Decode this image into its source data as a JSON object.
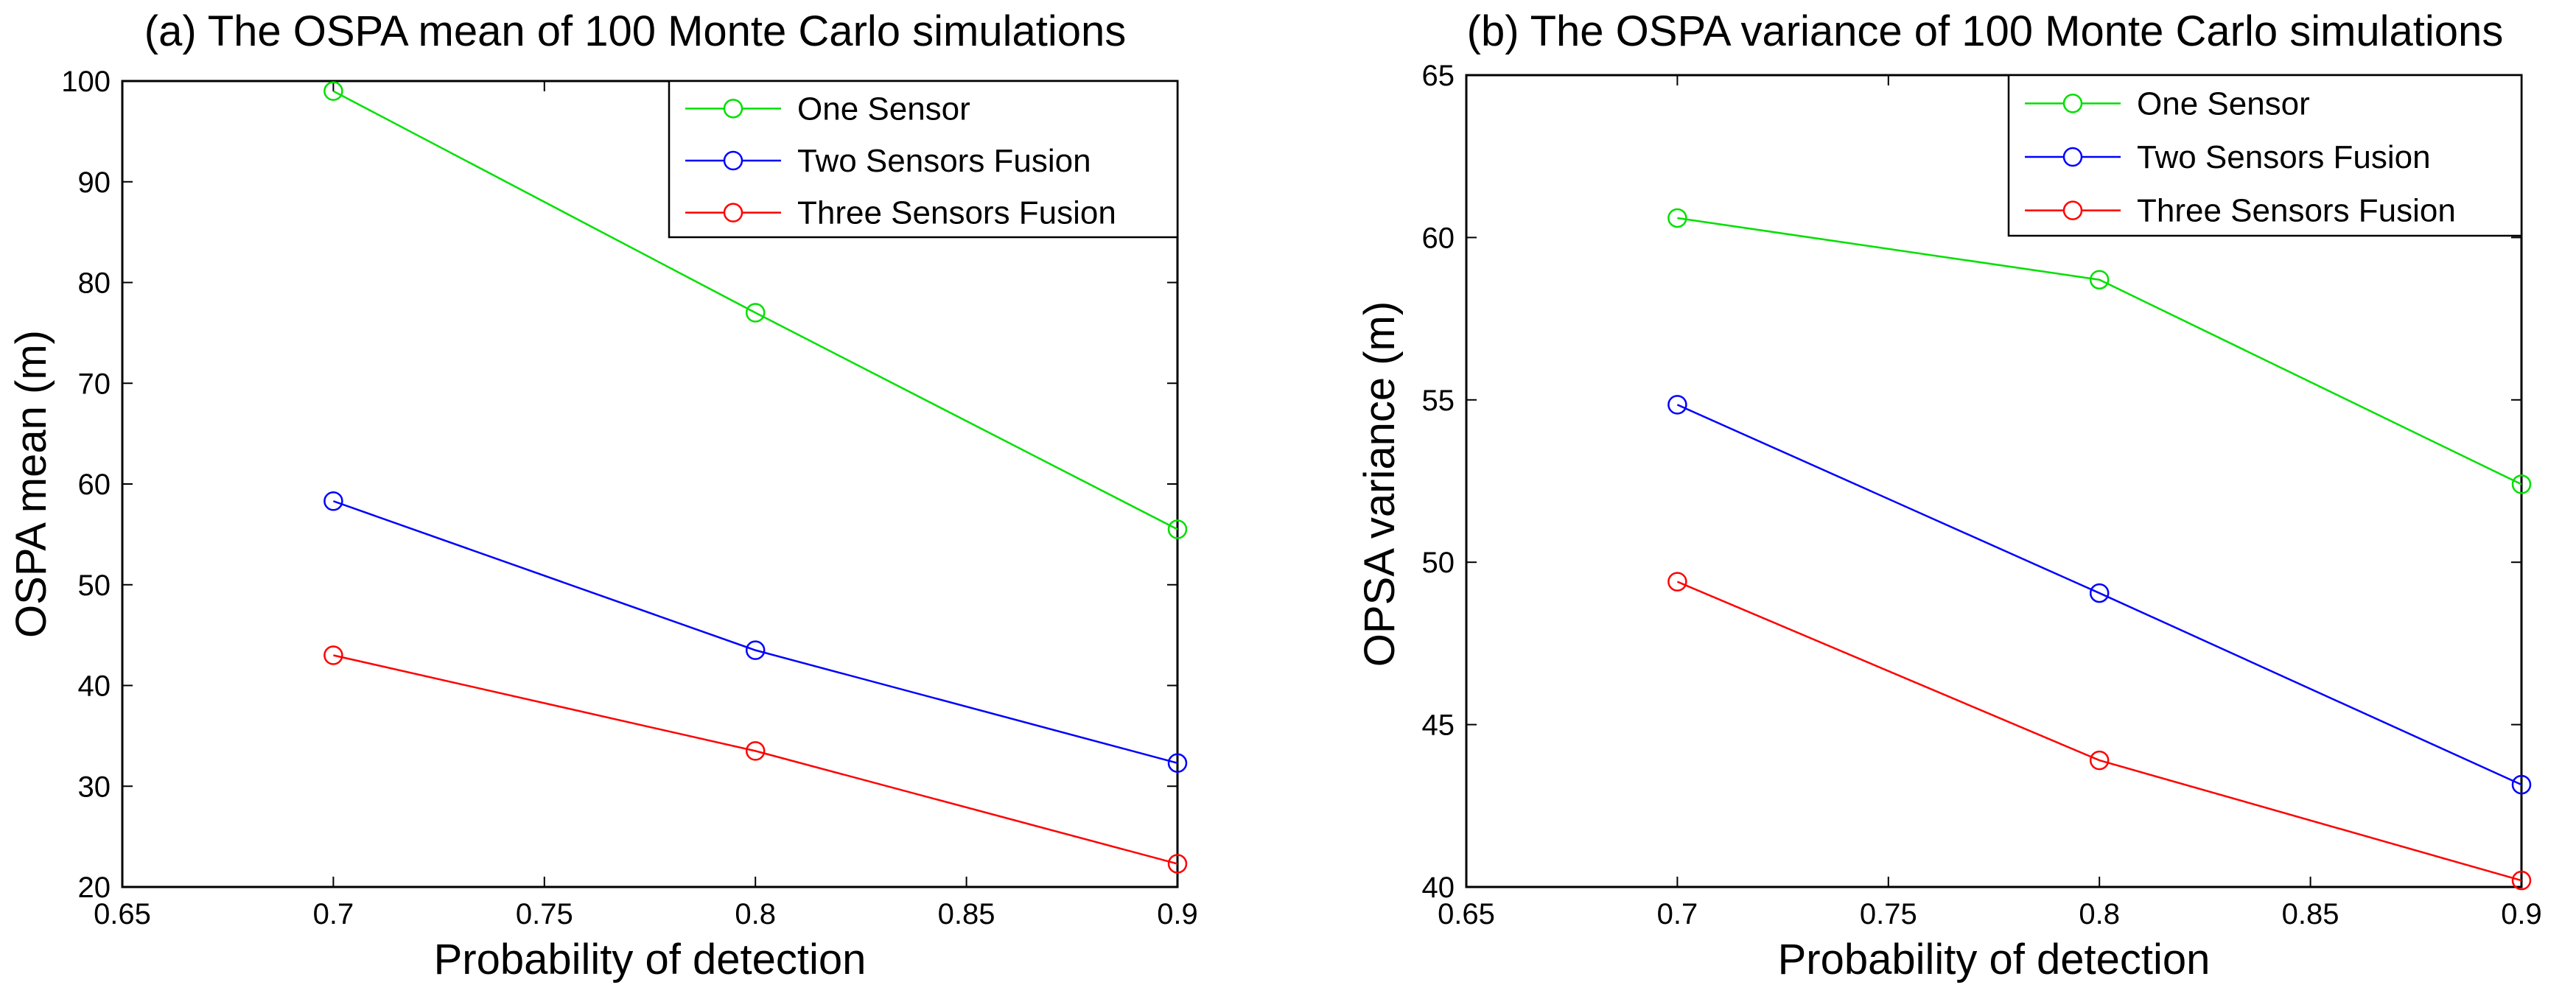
{
  "chart_data": [
    {
      "type": "line",
      "title": "(a) The OSPA mean of 100 Monte Carlo simulations",
      "xlabel": "Probability of detection",
      "ylabel": "OSPA mean (m)",
      "xlim": [
        0.65,
        0.9
      ],
      "ylim": [
        20,
        100
      ],
      "xticks": [
        "0.65",
        "0.7",
        "0.75",
        "0.8",
        "0.85",
        "0.9"
      ],
      "yticks": [
        "20",
        "30",
        "40",
        "50",
        "60",
        "70",
        "80",
        "90",
        "100"
      ],
      "x": [
        0.7,
        0.8,
        0.9
      ],
      "grid": false,
      "legend_position": "top-right",
      "marker": "open-circle",
      "series": [
        {
          "name": "One Sensor",
          "color": "#00e000",
          "values": [
            99,
            77,
            55.5
          ]
        },
        {
          "name": "Two Sensors Fusion",
          "color": "#0000ff",
          "values": [
            58.3,
            43.5,
            32.3
          ]
        },
        {
          "name": "Three Sensors Fusion",
          "color": "#ff0000",
          "values": [
            43,
            33.5,
            22.3
          ]
        }
      ]
    },
    {
      "type": "line",
      "title": "(b) The OSPA variance of 100 Monte Carlo simulations",
      "xlabel": "Probability of detection",
      "ylabel": "OPSA variance (m)",
      "xlim": [
        0.65,
        0.9
      ],
      "ylim": [
        40,
        65
      ],
      "xticks": [
        "0.65",
        "0.7",
        "0.75",
        "0.8",
        "0.85",
        "0.9"
      ],
      "yticks": [
        "40",
        "45",
        "50",
        "55",
        "60",
        "65"
      ],
      "x": [
        0.7,
        0.8,
        0.9
      ],
      "grid": false,
      "legend_position": "top-right",
      "marker": "open-circle",
      "series": [
        {
          "name": "One Sensor",
          "color": "#00e000",
          "values": [
            60.6,
            58.7,
            52.4
          ]
        },
        {
          "name": "Two Sensors Fusion",
          "color": "#0000ff",
          "values": [
            54.85,
            49.05,
            43.15
          ]
        },
        {
          "name": "Three Sensors Fusion",
          "color": "#ff0000",
          "values": [
            49.4,
            43.9,
            40.2
          ]
        }
      ]
    }
  ]
}
